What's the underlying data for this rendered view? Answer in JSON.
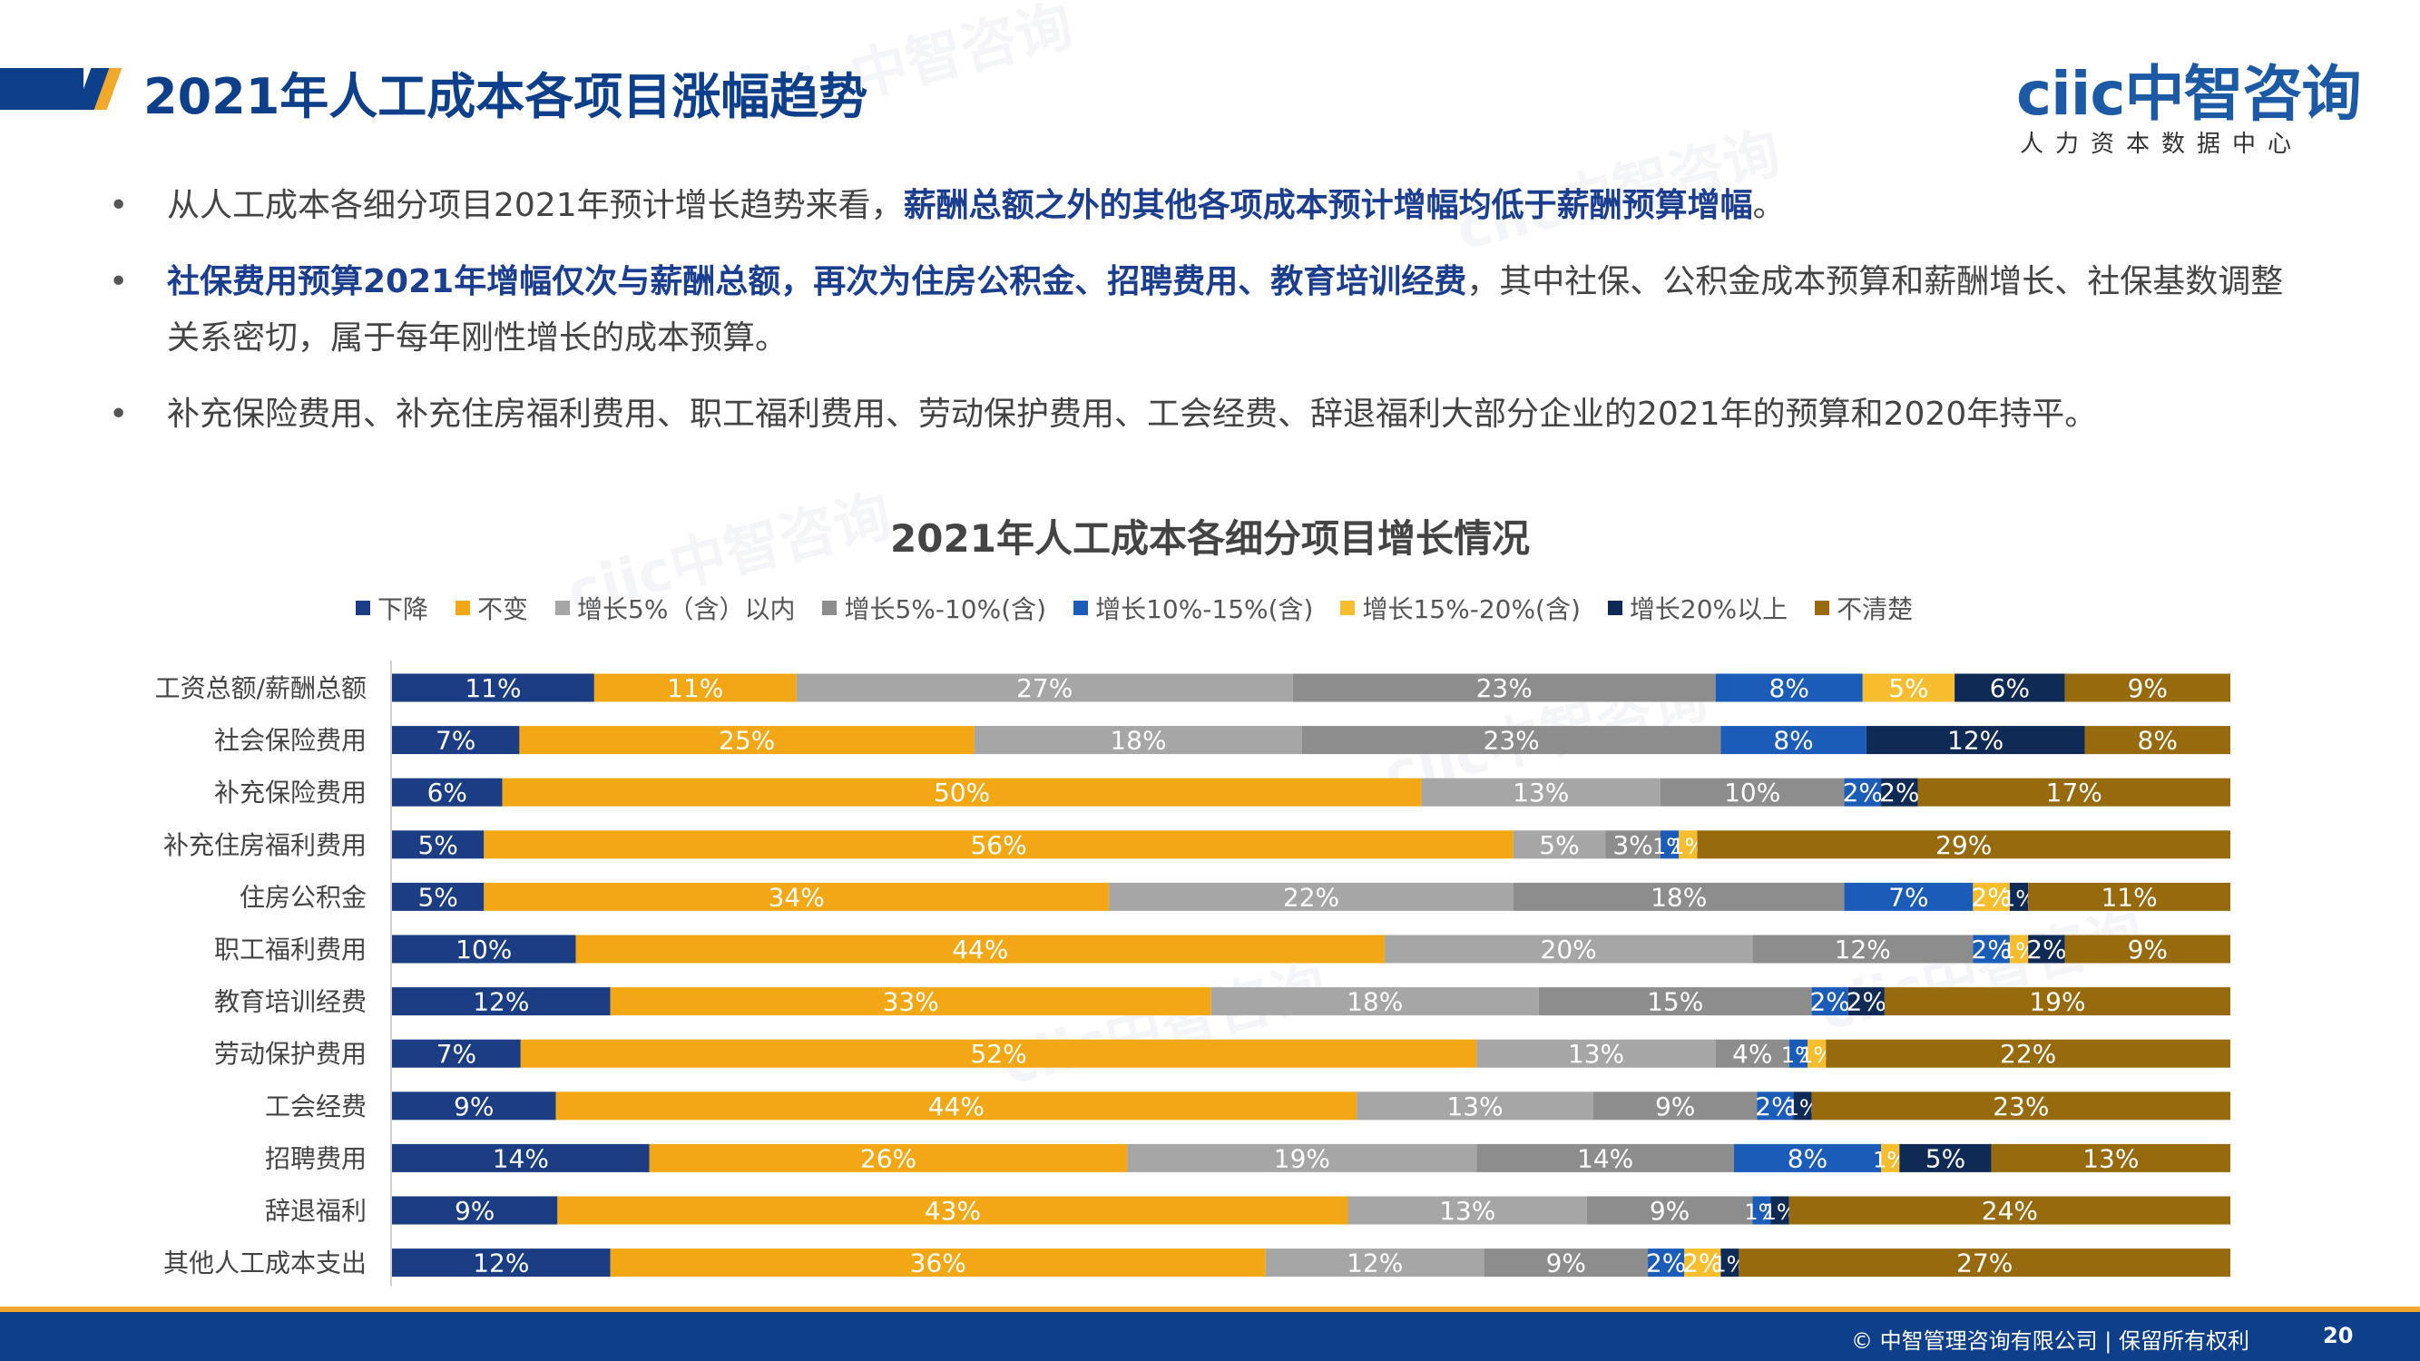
{
  "header": {
    "title": "2021年人工成本各项目涨幅趋势"
  },
  "logo": {
    "brand": "ciic中智咨询",
    "subtitle": "人力资本数据中心"
  },
  "bullets": [
    {
      "parts": [
        {
          "text": "从人工成本各细分项目2021年预计增长趋势来看，",
          "hl": false
        },
        {
          "text": "薪酬总额之外的其他各项成本预计增幅均低于薪酬预算增幅",
          "hl": true
        },
        {
          "text": "。",
          "hl": false
        }
      ]
    },
    {
      "parts": [
        {
          "text": "社保费用预算2021年增幅仅次与薪酬总额，再次为住房公积金、招聘费用、教育培训经费",
          "hl": true
        },
        {
          "text": "，其中社保、公积金成本预算和薪酬增长、社保基数调整关系密切，属于每年刚性增长的成本预算。",
          "hl": false
        }
      ]
    },
    {
      "parts": [
        {
          "text": "补充保险费用、补充住房福利费用、职工福利费用、劳动保护费用、工会经费、辞退福利大部分企业的2021年的预算和2020年持平。",
          "hl": false
        }
      ]
    }
  ],
  "chart_data": {
    "type": "bar",
    "orientation": "horizontal-stacked-100",
    "title": "2021年人工成本各细分项目增长情况",
    "categories": [
      "工资总额/薪酬总额",
      "社会保险费用",
      "补充保险费用",
      "补充住房福利费用",
      "住房公积金",
      "职工福利费用",
      "教育培训经费",
      "劳动保护费用",
      "工会经费",
      "招聘费用",
      "辞退福利",
      "其他人工成本支出"
    ],
    "series": [
      {
        "name": "下降",
        "color": "#1b3d84",
        "values": [
          11,
          7,
          6,
          5,
          5,
          10,
          12,
          7,
          9,
          14,
          9,
          12
        ]
      },
      {
        "name": "不变",
        "color": "#f2a714",
        "values": [
          11,
          25,
          50,
          56,
          34,
          44,
          33,
          52,
          44,
          26,
          43,
          36
        ]
      },
      {
        "name": "增长5%（含）以内",
        "color": "#a6a6a6",
        "values": [
          27,
          18,
          13,
          5,
          22,
          20,
          18,
          13,
          13,
          19,
          13,
          12
        ]
      },
      {
        "name": "增长5%-10%(含)",
        "color": "#8d8d8d",
        "values": [
          23,
          23,
          10,
          3,
          18,
          12,
          15,
          4,
          9,
          14,
          9,
          9
        ]
      },
      {
        "name": "增长10%-15%(含)",
        "color": "#1a5cb7",
        "values": [
          8,
          8,
          2,
          1,
          7,
          2,
          2,
          1,
          2,
          8,
          1,
          2
        ]
      },
      {
        "name": "增长15%-20%(含)",
        "color": "#f6bd2f",
        "values": [
          5,
          0,
          0,
          1,
          2,
          1,
          0,
          1,
          0,
          1,
          0,
          2
        ]
      },
      {
        "name": "增长20%以上",
        "color": "#0e2a55",
        "values": [
          6,
          12,
          2,
          0,
          1,
          2,
          2,
          0,
          1,
          5,
          1,
          1
        ]
      },
      {
        "name": "不清楚",
        "color": "#976a0e",
        "values": [
          9,
          8,
          17,
          29,
          11,
          9,
          19,
          22,
          23,
          13,
          24,
          27
        ]
      }
    ],
    "value_suffix": "%",
    "legend_position": "top",
    "grid": false
  },
  "footer": {
    "copyright": "© 中智管理咨询有限公司 | 保留所有权利",
    "page": "20"
  }
}
